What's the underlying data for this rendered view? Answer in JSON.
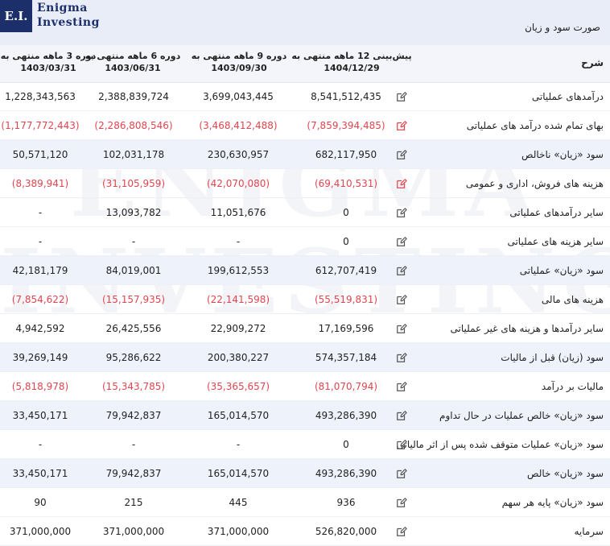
{
  "logo": {
    "mark": "E.I.",
    "line1": "Enigma",
    "line2": "Investing"
  },
  "watermark": {
    "line1": "ENIGMA",
    "line2": "INVESTING"
  },
  "page_title": "صورت سود و زیان",
  "table": {
    "label_header": "شرح",
    "columns": [
      {
        "line1": "پیش‌بینی 12 ماهه منتهی به",
        "line2": "1404/12/29"
      },
      {
        "line1": "دوره 9 ماهه منتهی به",
        "line2": "1403/09/30"
      },
      {
        "line1": "دوره 6 ماهه منتهی به",
        "line2": "1403/06/31"
      },
      {
        "line1": "دوره 3 ماهه منتهی به",
        "line2": "1403/03/31"
      }
    ],
    "rows": [
      {
        "label": "درآمدهای عملیاتی",
        "values": [
          "8,541,512,435",
          "3,699,043,445",
          "2,388,839,724",
          "1,228,343,563"
        ],
        "negative": false,
        "highlight": false,
        "icon_color": "#555555"
      },
      {
        "label": "بهای تمام شده درآمد های عملیاتی",
        "values": [
          "(7,859,394,485)",
          "(3,468,412,488)",
          "(2,286,808,546)",
          "(1,177,772,443)"
        ],
        "negative": true,
        "highlight": false,
        "icon_color": "#e0454f"
      },
      {
        "label": "سود «زیان» ناخالص",
        "values": [
          "682,117,950",
          "230,630,957",
          "102,031,178",
          "50,571,120"
        ],
        "negative": false,
        "highlight": true,
        "icon_color": "#555555"
      },
      {
        "label": "هزینه های فروش، اداری و عمومی",
        "values": [
          "(69,410,531)",
          "(42,070,080)",
          "(31,105,959)",
          "(8,389,941)"
        ],
        "negative": true,
        "highlight": false,
        "icon_color": "#e0454f"
      },
      {
        "label": "سایر درآمدهای عملیاتی",
        "values": [
          "0",
          "11,051,676",
          "13,093,782",
          "-"
        ],
        "negative": false,
        "highlight": false,
        "icon_color": null
      },
      {
        "label": "سایر هزینه های عملیاتی",
        "values": [
          "0",
          "-",
          "-",
          "-"
        ],
        "negative": false,
        "highlight": false,
        "icon_color": null
      },
      {
        "label": "سود «زیان» عملیاتی",
        "values": [
          "612,707,419",
          "199,612,553",
          "84,019,001",
          "42,181,179"
        ],
        "negative": false,
        "highlight": true,
        "icon_color": null
      },
      {
        "label": "هزینه های مالی",
        "values": [
          "(55,519,831)",
          "(22,141,598)",
          "(15,157,935)",
          "(7,854,622)"
        ],
        "negative": true,
        "highlight": false,
        "icon_color": null
      },
      {
        "label": "سایر درآمدها و هزینه های غیر عملیاتی",
        "values": [
          "17,169,596",
          "22,909,272",
          "26,425,556",
          "4,942,592"
        ],
        "negative": false,
        "highlight": false,
        "icon_color": null
      },
      {
        "label": "سود (زیان) قبل از مالیات",
        "values": [
          "574,357,184",
          "200,380,227",
          "95,286,622",
          "39,269,149"
        ],
        "negative": false,
        "highlight": true,
        "icon_color": null
      },
      {
        "label": "مالیات بر درآمد",
        "values": [
          "(81,070,794)",
          "(35,365,657)",
          "(15,343,785)",
          "(5,818,978)"
        ],
        "negative": true,
        "highlight": false,
        "icon_color": null
      },
      {
        "label": "سود «زیان» خالص عملیات در حال تداوم",
        "values": [
          "493,286,390",
          "165,014,570",
          "79,942,837",
          "33,450,171"
        ],
        "negative": false,
        "highlight": true,
        "icon_color": null
      },
      {
        "label": "سود «زیان» عملیات متوقف شده پس از اثر مالیاتی",
        "values": [
          "0",
          "-",
          "-",
          "-"
        ],
        "negative": false,
        "highlight": false,
        "icon_color": "#555555"
      },
      {
        "label": "سود «زیان» خالص",
        "values": [
          "493,286,390",
          "165,014,570",
          "79,942,837",
          "33,450,171"
        ],
        "negative": false,
        "highlight": true,
        "icon_color": "#555555"
      },
      {
        "label": "سود «زیان» پایه هر سهم",
        "values": [
          "936",
          "445",
          "215",
          "90"
        ],
        "negative": false,
        "highlight": false,
        "icon_color": null
      },
      {
        "label": "سرمایه",
        "values": [
          "526,820,000",
          "371,000,000",
          "371,000,000",
          "371,000,000"
        ],
        "negative": false,
        "highlight": false,
        "icon_color": "#555555"
      }
    ]
  }
}
